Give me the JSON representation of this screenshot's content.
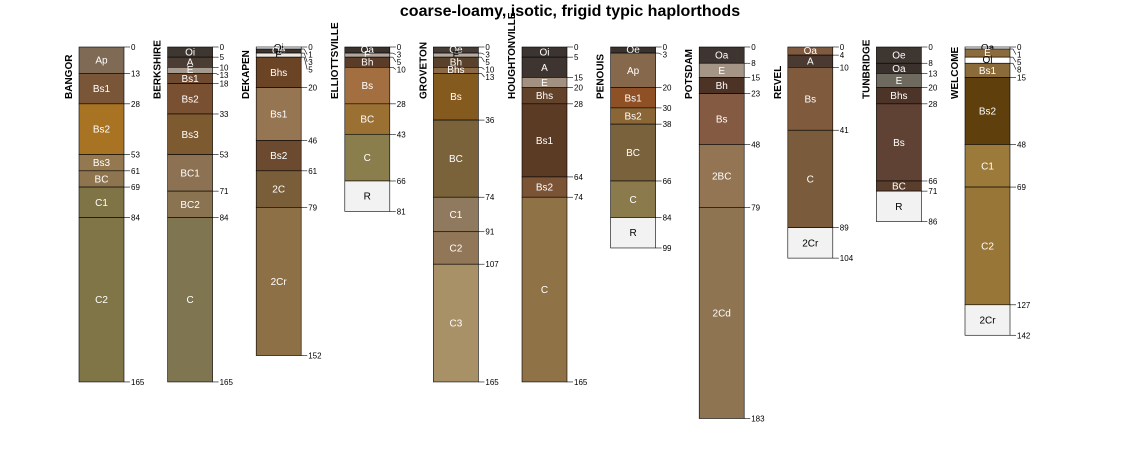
{
  "chart_data": {
    "type": "soil-profile-sketch",
    "title": "coarse-loamy, isotic, frigid typic haplorthods",
    "depth_unit": "cm",
    "profiles": [
      {
        "name": "BANGOR",
        "horizons": [
          {
            "name": "Ap",
            "top": 0,
            "bottom": 13,
            "color": "#7f6a55"
          },
          {
            "name": "Bs1",
            "top": 13,
            "bottom": 28,
            "color": "#7a5638"
          },
          {
            "name": "Bs2",
            "top": 28,
            "bottom": 53,
            "color": "#a87424"
          },
          {
            "name": "Bs3",
            "top": 53,
            "bottom": 61,
            "color": "#94784f"
          },
          {
            "name": "BC",
            "top": 61,
            "bottom": 69,
            "color": "#8e7550"
          },
          {
            "name": "C1",
            "top": 69,
            "bottom": 84,
            "color": "#7f7446"
          },
          {
            "name": "C2",
            "top": 84,
            "bottom": 165,
            "color": "#7f7547"
          }
        ]
      },
      {
        "name": "BERKSHIRE",
        "horizons": [
          {
            "name": "Oi",
            "top": 0,
            "bottom": 5,
            "color": "#3e3631"
          },
          {
            "name": "A",
            "top": 5,
            "bottom": 10,
            "color": "#4b3d33"
          },
          {
            "name": "E",
            "top": 10,
            "bottom": 13,
            "color": "#a59a90"
          },
          {
            "name": "Bs1",
            "top": 13,
            "bottom": 18,
            "color": "#6e4a30"
          },
          {
            "name": "Bs2",
            "top": 18,
            "bottom": 33,
            "color": "#7a5032"
          },
          {
            "name": "Bs3",
            "top": 33,
            "bottom": 53,
            "color": "#7d5a2f"
          },
          {
            "name": "BC1",
            "top": 53,
            "bottom": 71,
            "color": "#8c7252"
          },
          {
            "name": "BC2",
            "top": 71,
            "bottom": 84,
            "color": "#8a7351"
          },
          {
            "name": "C",
            "top": 84,
            "bottom": 165,
            "color": "#7f7551"
          }
        ]
      },
      {
        "name": "DEKAPEN",
        "horizons": [
          {
            "name": "Oi",
            "top": 0,
            "bottom": 1,
            "color": "#ffffff"
          },
          {
            "name": "Oe",
            "top": 1,
            "bottom": 3,
            "color": "#3d3530"
          },
          {
            "name": "E",
            "top": 3,
            "bottom": 5,
            "color": "#efe9e0"
          },
          {
            "name": "Bhs",
            "top": 5,
            "bottom": 20,
            "color": "#6b4325"
          },
          {
            "name": "Bs1",
            "top": 20,
            "bottom": 46,
            "color": "#967552"
          },
          {
            "name": "Bs2",
            "top": 46,
            "bottom": 61,
            "color": "#6b4a2f"
          },
          {
            "name": "2C",
            "top": 61,
            "bottom": 79,
            "color": "#7a5e3a"
          },
          {
            "name": "2Cr",
            "top": 79,
            "bottom": 152,
            "color": "#8d7046"
          }
        ]
      },
      {
        "name": "ELLIOTTSVILLE",
        "horizons": [
          {
            "name": "Oa",
            "top": 0,
            "bottom": 3,
            "color": "#3a322d"
          },
          {
            "name": "E",
            "top": 3,
            "bottom": 5,
            "color": "#b3a79b"
          },
          {
            "name": "Bh",
            "top": 5,
            "bottom": 10,
            "color": "#5a3c28"
          },
          {
            "name": "Bs",
            "top": 10,
            "bottom": 28,
            "color": "#a46f40"
          },
          {
            "name": "BC",
            "top": 28,
            "bottom": 43,
            "color": "#9b7133"
          },
          {
            "name": "C",
            "top": 43,
            "bottom": 66,
            "color": "#8a7e4c"
          },
          {
            "name": "R",
            "top": 66,
            "bottom": 81,
            "color": "#f2f2f2"
          }
        ]
      },
      {
        "name": "GROVETON",
        "horizons": [
          {
            "name": "Oe",
            "top": 0,
            "bottom": 3,
            "color": "#463d36"
          },
          {
            "name": "E",
            "top": 3,
            "bottom": 5,
            "color": "#b5ab9f"
          },
          {
            "name": "Bh",
            "top": 5,
            "bottom": 10,
            "color": "#59422c"
          },
          {
            "name": "Bhs",
            "top": 10,
            "bottom": 13,
            "color": "#8c6945"
          },
          {
            "name": "Bs",
            "top": 13,
            "bottom": 36,
            "color": "#855a1e"
          },
          {
            "name": "BC",
            "top": 36,
            "bottom": 74,
            "color": "#7a623a"
          },
          {
            "name": "C1",
            "top": 74,
            "bottom": 91,
            "color": "#8f7a5f"
          },
          {
            "name": "C2",
            "top": 91,
            "bottom": 107,
            "color": "#917658"
          },
          {
            "name": "C3",
            "top": 107,
            "bottom": 165,
            "color": "#a89067"
          }
        ]
      },
      {
        "name": "HOUGHTONVILLE",
        "horizons": [
          {
            "name": "Oi",
            "top": 0,
            "bottom": 5,
            "color": "#3c3430"
          },
          {
            "name": "A",
            "top": 5,
            "bottom": 15,
            "color": "#3f3530"
          },
          {
            "name": "E",
            "top": 15,
            "bottom": 20,
            "color": "#a29080"
          },
          {
            "name": "Bhs",
            "top": 20,
            "bottom": 28,
            "color": "#63422a"
          },
          {
            "name": "Bs1",
            "top": 28,
            "bottom": 64,
            "color": "#5c3b25"
          },
          {
            "name": "Bs2",
            "top": 64,
            "bottom": 74,
            "color": "#7b5335"
          },
          {
            "name": "C",
            "top": 74,
            "bottom": 165,
            "color": "#8f7246"
          }
        ]
      },
      {
        "name": "PENOUIS",
        "horizons": [
          {
            "name": "Oe",
            "top": 0,
            "bottom": 3,
            "color": "#3a322d"
          },
          {
            "name": "Ap",
            "top": 3,
            "bottom": 20,
            "color": "#86684c"
          },
          {
            "name": "Bs1",
            "top": 20,
            "bottom": 30,
            "color": "#8e5024"
          },
          {
            "name": "Bs2",
            "top": 30,
            "bottom": 38,
            "color": "#8a6536"
          },
          {
            "name": "BC",
            "top": 38,
            "bottom": 66,
            "color": "#7a623c"
          },
          {
            "name": "C",
            "top": 66,
            "bottom": 84,
            "color": "#8a7a4c"
          },
          {
            "name": "R",
            "top": 84,
            "bottom": 99,
            "color": "#f2f2f2"
          }
        ]
      },
      {
        "name": "POTSDAM",
        "horizons": [
          {
            "name": "Oa",
            "top": 0,
            "bottom": 8,
            "color": "#3e3530"
          },
          {
            "name": "E",
            "top": 8,
            "bottom": 15,
            "color": "#a59587"
          },
          {
            "name": "Bh",
            "top": 15,
            "bottom": 23,
            "color": "#4c3325"
          },
          {
            "name": "Bs",
            "top": 23,
            "bottom": 48,
            "color": "#855a42"
          },
          {
            "name": "2BC",
            "top": 48,
            "bottom": 79,
            "color": "#947553"
          },
          {
            "name": "2Cd",
            "top": 79,
            "bottom": 183,
            "color": "#8e7450"
          }
        ]
      },
      {
        "name": "REVEL",
        "horizons": [
          {
            "name": "Oa",
            "top": 0,
            "bottom": 4,
            "color": "#7f5a3f"
          },
          {
            "name": "A",
            "top": 4,
            "bottom": 10,
            "color": "#4a3a32"
          },
          {
            "name": "Bs",
            "top": 10,
            "bottom": 41,
            "color": "#7f5a3c"
          },
          {
            "name": "C",
            "top": 41,
            "bottom": 89,
            "color": "#7a5c3c"
          },
          {
            "name": "2Cr",
            "top": 89,
            "bottom": 104,
            "color": "#f2f2f2"
          }
        ]
      },
      {
        "name": "TUNBRIDGE",
        "horizons": [
          {
            "name": "Oe",
            "top": 0,
            "bottom": 8,
            "color": "#3e3631"
          },
          {
            "name": "Oa",
            "top": 8,
            "bottom": 13,
            "color": "#3a312d"
          },
          {
            "name": "E",
            "top": 13,
            "bottom": 20,
            "color": "#6f6a5f"
          },
          {
            "name": "Bhs",
            "top": 20,
            "bottom": 28,
            "color": "#4c3528"
          },
          {
            "name": "Bs",
            "top": 28,
            "bottom": 66,
            "color": "#5f4233"
          },
          {
            "name": "BC",
            "top": 66,
            "bottom": 71,
            "color": "#5a3e2c"
          },
          {
            "name": "R",
            "top": 71,
            "bottom": 86,
            "color": "#f2f2f2"
          }
        ]
      },
      {
        "name": "WELCOME",
        "horizons": [
          {
            "name": "Oa",
            "top": 0,
            "bottom": 1,
            "color": "#ffffff"
          },
          {
            "name": "E",
            "top": 1,
            "bottom": 5,
            "color": "#8c6b3c"
          },
          {
            "name": "Oi",
            "top": 5,
            "bottom": 8,
            "color": "#ffffff"
          },
          {
            "name": "Bs1",
            "top": 8,
            "bottom": 15,
            "color": "#8c6b3a"
          },
          {
            "name": "Bs2",
            "top": 15,
            "bottom": 48,
            "color": "#5f3f0c"
          },
          {
            "name": "C1",
            "top": 48,
            "bottom": 69,
            "color": "#9c7b3a"
          },
          {
            "name": "C2",
            "top": 69,
            "bottom": 127,
            "color": "#987637"
          },
          {
            "name": "2Cr",
            "top": 127,
            "bottom": 142,
            "color": "#f2f2f2"
          }
        ]
      }
    ]
  }
}
